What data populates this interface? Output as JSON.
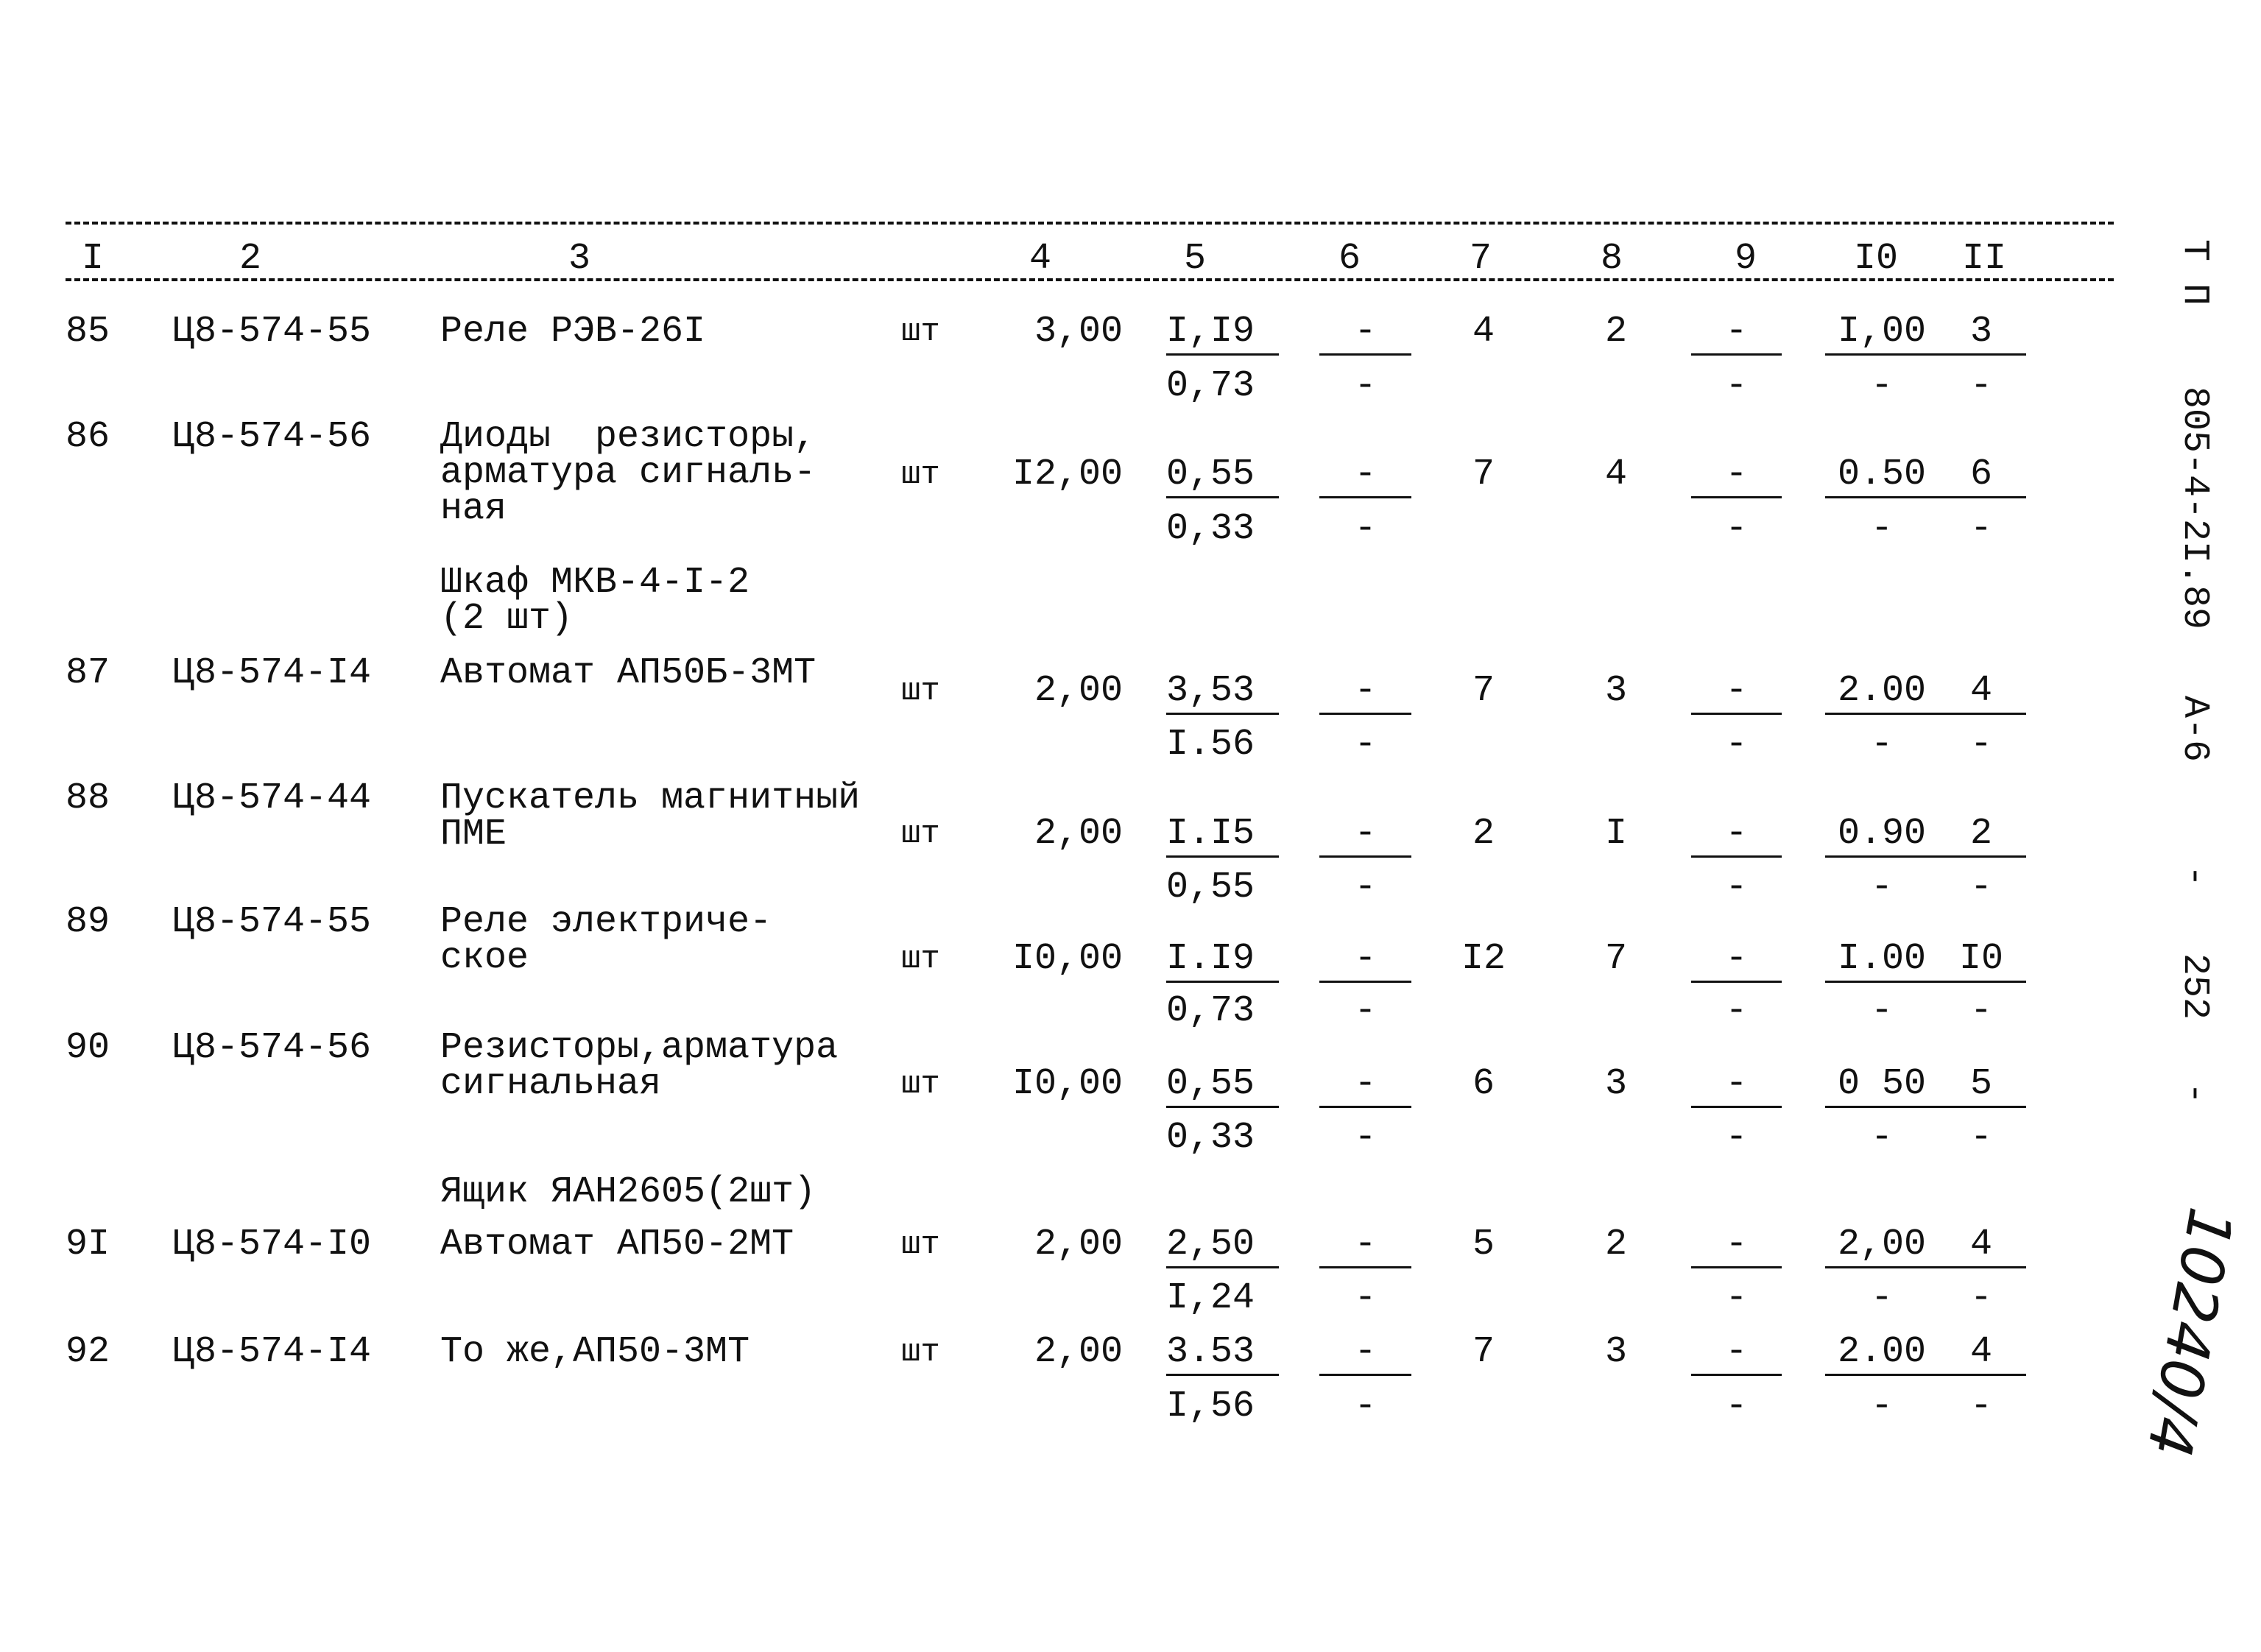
{
  "header": {
    "columns": [
      "I",
      "2",
      "3",
      "4",
      "5",
      "6",
      "7",
      "8",
      "9",
      "I0",
      "II"
    ]
  },
  "rows": [
    {
      "no": "85",
      "code": "Ц8-574-55",
      "name": [
        "Реле РЭВ-26I"
      ],
      "unit": "шт",
      "qty": "3,00",
      "c5": [
        "I,I9",
        "0,73"
      ],
      "c6": [
        "-",
        "-"
      ],
      "c7": "4",
      "c8": "2",
      "c9": [
        "-",
        "-"
      ],
      "c10": [
        "I,00",
        "-"
      ],
      "c11": [
        "3",
        "-"
      ]
    },
    {
      "no": "86",
      "code": "Ц8-574-56",
      "name": [
        "Диоды  резисторы,",
        "арматура сигналь-",
        "ная"
      ],
      "unit": "шт",
      "qty": "I2,00",
      "c5": [
        "0,55",
        "0,33"
      ],
      "c6": [
        "-",
        "-"
      ],
      "c7": "7",
      "c8": "4",
      "c9": [
        "-",
        "-"
      ],
      "c10": [
        "0.50",
        "-"
      ],
      "c11": [
        "6",
        "-"
      ]
    },
    {
      "no": "87",
      "code": "Ц8-574-I4",
      "name": [
        "Автомат АП50Б-3МТ"
      ],
      "unit": "шт",
      "qty": "2,00",
      "c5": [
        "3,53",
        "I.56"
      ],
      "c6": [
        "-",
        "-"
      ],
      "c7": "7",
      "c8": "3",
      "c9": [
        "-",
        "-"
      ],
      "c10": [
        "2.00",
        "-"
      ],
      "c11": [
        "4",
        "-"
      ]
    },
    {
      "no": "88",
      "code": "Ц8-574-44",
      "name": [
        "Пускатель магнитный",
        "ПМЕ"
      ],
      "unit": "шт",
      "qty": "2,00",
      "c5": [
        "I.I5",
        "0,55"
      ],
      "c6": [
        "-",
        "-"
      ],
      "c7": "2",
      "c8": "I",
      "c9": [
        "-",
        "-"
      ],
      "c10": [
        "0.90",
        "-"
      ],
      "c11": [
        "2",
        "-"
      ]
    },
    {
      "no": "89",
      "code": "Ц8-574-55",
      "name": [
        "Реле электриче-",
        "ское"
      ],
      "unit": "шт",
      "qty": "I0,00",
      "c5": [
        "I.I9",
        "0,73"
      ],
      "c6": [
        "-",
        "-"
      ],
      "c7": "I2",
      "c8": "7",
      "c9": [
        "-",
        "-"
      ],
      "c10": [
        "I.00",
        "-"
      ],
      "c11": [
        "I0",
        "-"
      ]
    },
    {
      "no": "90",
      "code": "Ц8-574-56",
      "name": [
        "Резисторы,арматура",
        "сигнальная"
      ],
      "unit": "шт",
      "qty": "I0,00",
      "c5": [
        "0,55",
        "0,33"
      ],
      "c6": [
        "-",
        "-"
      ],
      "c7": "6",
      "c8": "3",
      "c9": [
        "-",
        "-"
      ],
      "c10": [
        "0 50",
        "-"
      ],
      "c11": [
        "5",
        "-"
      ]
    },
    {
      "no": "9I",
      "code": "Ц8-574-I0",
      "name": [
        "Автомат АП50-2МТ"
      ],
      "unit": "шт",
      "qty": "2,00",
      "c5": [
        "2,50",
        "I,24"
      ],
      "c6": [
        "-",
        "-"
      ],
      "c7": "5",
      "c8": "2",
      "c9": [
        "-",
        "-"
      ],
      "c10": [
        "2,00",
        "-"
      ],
      "c11": [
        "4",
        "-"
      ]
    },
    {
      "no": "92",
      "code": "Ц8-574-I4",
      "name": [
        "То же,АП50-3МТ"
      ],
      "unit": "шт",
      "qty": "2,00",
      "c5": [
        "3.53",
        "I,56"
      ],
      "c6": [
        "-",
        "-"
      ],
      "c7": "7",
      "c8": "3",
      "c9": [
        "-",
        "-"
      ],
      "c10": [
        "2.00",
        "-"
      ],
      "c11": [
        "4",
        "-"
      ]
    }
  ],
  "notes": [
    [
      "Шкаф МКВ-4-I-2",
      "(2 шт)"
    ],
    [
      "Ящик ЯАН2605(2шт)"
    ]
  ],
  "margin": {
    "series": "Т П",
    "doc_code": "805-4-2I.89",
    "album": "А-6",
    "dash1": "-",
    "page": "252",
    "dash2": "-",
    "handwritten": "10240/4"
  }
}
